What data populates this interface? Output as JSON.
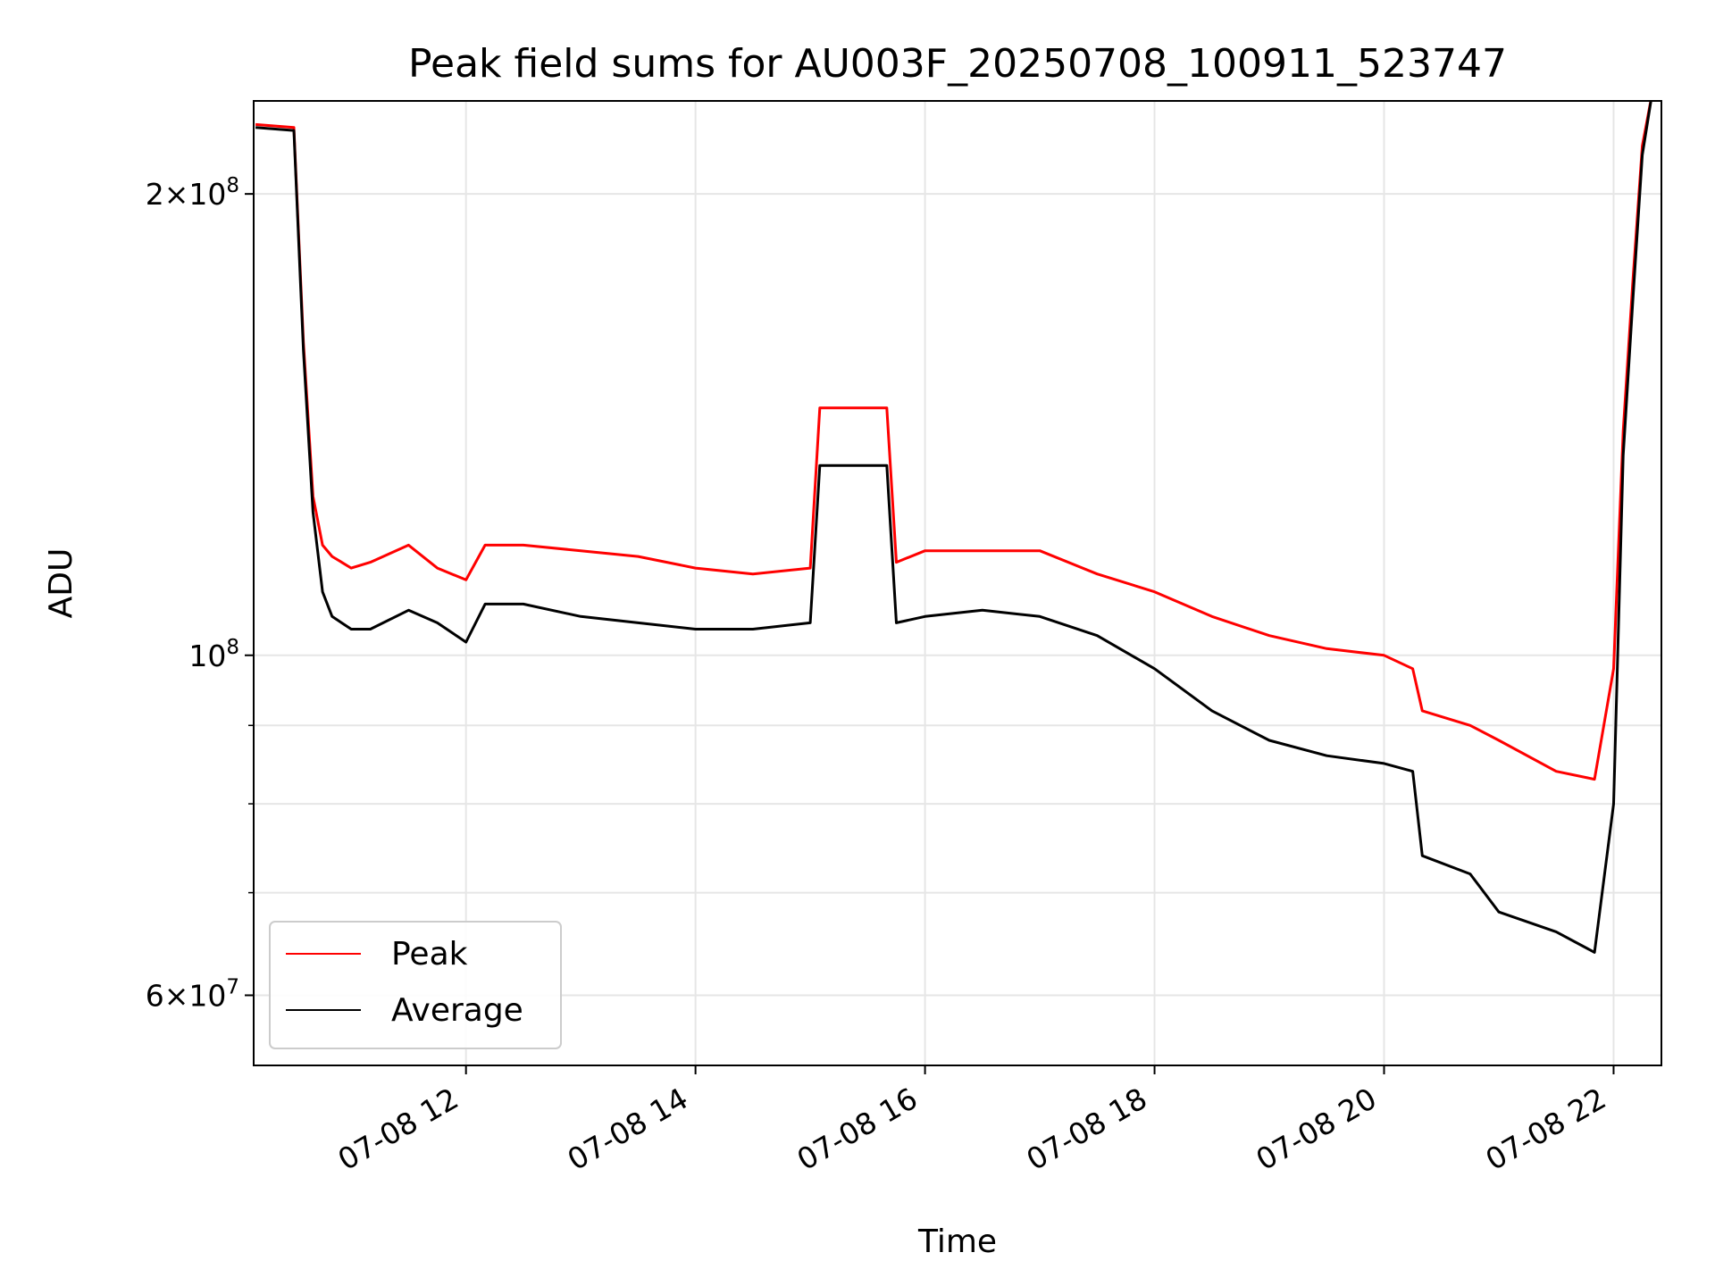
{
  "chart_data": {
    "type": "line",
    "title": "Peak field sums for AU003F_20250708_100911_523747",
    "xlabel": "Time",
    "ylabel": "ADU",
    "yscale": "log",
    "xlim": [
      "2025-07-08 10:09",
      "2025-07-08 22:25"
    ],
    "ylim": [
      54000000,
      230000000
    ],
    "x_ticks": [
      "07-08 12",
      "07-08 14",
      "07-08 16",
      "07-08 18",
      "07-08 20",
      "07-08 22"
    ],
    "y_ticks": [
      {
        "value": 200000000,
        "mant": "2",
        "exp": "8"
      },
      {
        "value": 100000000,
        "mant": "",
        "exp": "8"
      },
      {
        "value": 60000000,
        "mant": "6",
        "exp": "7"
      }
    ],
    "grid": true,
    "legend_position": "lower-left",
    "series": [
      {
        "name": "Peak",
        "color": "#ff0000",
        "x": [
          "2025-07-08 10:10",
          "2025-07-08 10:30",
          "2025-07-08 10:35",
          "2025-07-08 10:40",
          "2025-07-08 10:45",
          "2025-07-08 10:50",
          "2025-07-08 11:00",
          "2025-07-08 11:10",
          "2025-07-08 11:30",
          "2025-07-08 11:45",
          "2025-07-08 12:00",
          "2025-07-08 12:10",
          "2025-07-08 12:30",
          "2025-07-08 13:00",
          "2025-07-08 13:30",
          "2025-07-08 14:00",
          "2025-07-08 14:30",
          "2025-07-08 15:00",
          "2025-07-08 15:05",
          "2025-07-08 15:40",
          "2025-07-08 15:45",
          "2025-07-08 16:00",
          "2025-07-08 16:30",
          "2025-07-08 17:00",
          "2025-07-08 17:30",
          "2025-07-08 18:00",
          "2025-07-08 18:30",
          "2025-07-08 19:00",
          "2025-07-08 19:30",
          "2025-07-08 20:00",
          "2025-07-08 20:15",
          "2025-07-08 20:20",
          "2025-07-08 20:45",
          "2025-07-08 21:00",
          "2025-07-08 21:30",
          "2025-07-08 21:50",
          "2025-07-08 22:00",
          "2025-07-08 22:05",
          "2025-07-08 22:10",
          "2025-07-08 22:15",
          "2025-07-08 22:20"
        ],
        "y": [
          222000000,
          221000000,
          160000000,
          127000000,
          118000000,
          116000000,
          114000000,
          115000000,
          118000000,
          114000000,
          112000000,
          118000000,
          118000000,
          117000000,
          116000000,
          114000000,
          113000000,
          114000000,
          145000000,
          145000000,
          115000000,
          117000000,
          117000000,
          117000000,
          113000000,
          110000000,
          106000000,
          103000000,
          101000000,
          100000000,
          98000000,
          92000000,
          90000000,
          88000000,
          84000000,
          83000000,
          98000000,
          140000000,
          175000000,
          215000000,
          232000000
        ]
      },
      {
        "name": "Average",
        "color": "#000000",
        "x": [
          "2025-07-08 10:10",
          "2025-07-08 10:30",
          "2025-07-08 10:35",
          "2025-07-08 10:40",
          "2025-07-08 10:45",
          "2025-07-08 10:50",
          "2025-07-08 11:00",
          "2025-07-08 11:10",
          "2025-07-08 11:30",
          "2025-07-08 11:45",
          "2025-07-08 12:00",
          "2025-07-08 12:10",
          "2025-07-08 12:30",
          "2025-07-08 13:00",
          "2025-07-08 13:30",
          "2025-07-08 14:00",
          "2025-07-08 14:30",
          "2025-07-08 15:00",
          "2025-07-08 15:05",
          "2025-07-08 15:40",
          "2025-07-08 15:45",
          "2025-07-08 16:00",
          "2025-07-08 16:30",
          "2025-07-08 17:00",
          "2025-07-08 17:30",
          "2025-07-08 18:00",
          "2025-07-08 18:30",
          "2025-07-08 19:00",
          "2025-07-08 19:30",
          "2025-07-08 20:00",
          "2025-07-08 20:15",
          "2025-07-08 20:20",
          "2025-07-08 20:45",
          "2025-07-08 21:00",
          "2025-07-08 21:30",
          "2025-07-08 21:50",
          "2025-07-08 22:00",
          "2025-07-08 22:05",
          "2025-07-08 22:10",
          "2025-07-08 22:15",
          "2025-07-08 22:20"
        ],
        "y": [
          221000000,
          220000000,
          158000000,
          124000000,
          110000000,
          106000000,
          104000000,
          104000000,
          107000000,
          105000000,
          102000000,
          108000000,
          108000000,
          106000000,
          105000000,
          104000000,
          104000000,
          105000000,
          133000000,
          133000000,
          105000000,
          106000000,
          107000000,
          106000000,
          103000000,
          98000000,
          92000000,
          88000000,
          86000000,
          85000000,
          84000000,
          74000000,
          72000000,
          68000000,
          66000000,
          64000000,
          80000000,
          135000000,
          170000000,
          212000000,
          232000000
        ]
      }
    ]
  }
}
